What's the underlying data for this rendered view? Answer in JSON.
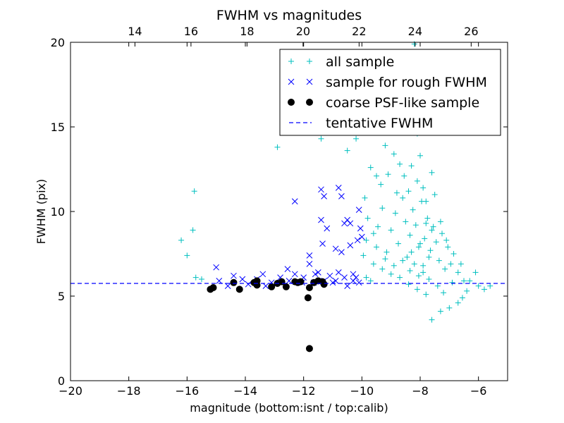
{
  "chart_data": {
    "type": "scatter",
    "title": "FWHM vs magnitudes",
    "xlabel": "magnitude (bottom:isnt / top:calib)",
    "ylabel": "FWHM (pix)",
    "xlim": [
      -20,
      -5
    ],
    "ylim": [
      0,
      20
    ],
    "top_xlim": [
      11.7,
      27.3
    ],
    "x_ticks": [
      -20,
      -18,
      -16,
      -14,
      -12,
      -10,
      -8,
      -6
    ],
    "x_tick_labels": [
      "−20",
      "−18",
      "−16",
      "−14",
      "−12",
      "−10",
      "−8",
      "−6"
    ],
    "y_ticks": [
      0,
      5,
      10,
      15,
      20
    ],
    "y_tick_labels": [
      "0",
      "5",
      "10",
      "15",
      "20"
    ],
    "top_x_ticks": [
      14,
      16,
      18,
      20,
      22,
      24,
      26
    ],
    "top_x_tick_labels": [
      "14",
      "16",
      "18",
      "20",
      "22",
      "24",
      "26"
    ],
    "grid": false,
    "legend_position": "top-right",
    "tentative_fwhm": 5.75,
    "series": [
      {
        "name": "all sample",
        "marker": "plus",
        "color": "#00bfbf",
        "points": [
          [
            -16.2,
            8.3
          ],
          [
            -16.0,
            7.4
          ],
          [
            -15.8,
            8.9
          ],
          [
            -15.75,
            11.2
          ],
          [
            -15.7,
            6.1
          ],
          [
            -15.5,
            6.0
          ],
          [
            -12.9,
            13.8
          ],
          [
            -11.4,
            14.3
          ],
          [
            -10.8,
            14.8
          ],
          [
            -10.5,
            13.6
          ],
          [
            -10.2,
            14.3
          ],
          [
            -9.7,
            12.6
          ],
          [
            -9.5,
            12.1
          ],
          [
            -9.2,
            13.9
          ],
          [
            -9.1,
            12.2
          ],
          [
            -8.9,
            13.4
          ],
          [
            -8.7,
            12.8
          ],
          [
            -8.55,
            12.1
          ],
          [
            -8.4,
            11.2
          ],
          [
            -8.3,
            12.7
          ],
          [
            -8.1,
            11.8
          ],
          [
            -8.0,
            13.3
          ],
          [
            -7.9,
            11.4
          ],
          [
            -7.8,
            10.6
          ],
          [
            -8.2,
            19.9
          ],
          [
            -8.6,
            14.9
          ],
          [
            -7.6,
            12.3
          ],
          [
            -7.5,
            11.0
          ],
          [
            -9.9,
            10.8
          ],
          [
            -9.8,
            9.6
          ],
          [
            -9.6,
            8.7
          ],
          [
            -9.45,
            9.1
          ],
          [
            -9.3,
            10.2
          ],
          [
            -9.15,
            7.6
          ],
          [
            -9.0,
            8.9
          ],
          [
            -8.85,
            9.9
          ],
          [
            -8.75,
            8.1
          ],
          [
            -8.6,
            10.8
          ],
          [
            -8.5,
            9.4
          ],
          [
            -8.45,
            7.3
          ],
          [
            -8.35,
            8.6
          ],
          [
            -8.25,
            10.1
          ],
          [
            -8.15,
            9.2
          ],
          [
            -8.05,
            7.9
          ],
          [
            -7.95,
            10.6
          ],
          [
            -7.85,
            8.4
          ],
          [
            -7.75,
            9.6
          ],
          [
            -7.65,
            7.7
          ],
          [
            -7.55,
            9.1
          ],
          [
            -7.45,
            8.2
          ],
          [
            -7.35,
            7.1
          ],
          [
            -7.25,
            8.7
          ],
          [
            -7.15,
            6.6
          ],
          [
            -7.05,
            7.9
          ],
          [
            -6.95,
            6.9
          ],
          [
            -6.85,
            7.5
          ],
          [
            -6.7,
            6.4
          ],
          [
            -6.6,
            6.9
          ],
          [
            -6.5,
            5.9
          ],
          [
            -6.4,
            5.3
          ],
          [
            -6.1,
            6.4
          ],
          [
            -6.0,
            5.6
          ],
          [
            -6.7,
            4.6
          ],
          [
            -7.0,
            4.3
          ],
          [
            -7.3,
            4.1
          ],
          [
            -7.6,
            3.6
          ],
          [
            -7.8,
            5.1
          ],
          [
            -8.1,
            5.4
          ],
          [
            -8.4,
            5.7
          ],
          [
            -8.7,
            6.1
          ],
          [
            -9.0,
            6.3
          ],
          [
            -9.3,
            6.6
          ],
          [
            -9.6,
            6.9
          ],
          [
            -9.85,
            6.1
          ],
          [
            -9.95,
            7.4
          ],
          [
            -9.7,
            5.9
          ],
          [
            -8.9,
            6.8
          ],
          [
            -8.2,
            6.9
          ],
          [
            -7.9,
            6.4
          ],
          [
            -7.7,
            6.0
          ],
          [
            -7.4,
            5.6
          ],
          [
            -7.2,
            5.2
          ],
          [
            -6.9,
            5.8
          ],
          [
            -8.3,
            7.6
          ],
          [
            -8.0,
            8.1
          ],
          [
            -7.6,
            8.9
          ],
          [
            -7.3,
            9.4
          ],
          [
            -7.1,
            8.3
          ],
          [
            -8.6,
            7.1
          ],
          [
            -9.2,
            7.2
          ],
          [
            -9.5,
            7.9
          ],
          [
            -9.85,
            8.3
          ],
          [
            -5.6,
            5.6
          ],
          [
            -5.8,
            5.4
          ],
          [
            -6.3,
            5.9
          ],
          [
            -6.55,
            4.9
          ],
          [
            -8.8,
            11.1
          ],
          [
            -9.35,
            11.6
          ],
          [
            -8.1,
            14.6
          ],
          [
            -8.5,
            15.4
          ],
          [
            -8.9,
            15.1
          ],
          [
            -7.8,
            9.3
          ],
          [
            -7.7,
            7.3
          ],
          [
            -7.9,
            6.8
          ],
          [
            -8.05,
            6.2
          ],
          [
            -8.35,
            6.5
          ]
        ]
      },
      {
        "name": "sample for rough FWHM",
        "marker": "x",
        "color": "#0000ff",
        "points": [
          [
            -15.0,
            6.7
          ],
          [
            -14.9,
            5.9
          ],
          [
            -14.6,
            5.6
          ],
          [
            -14.4,
            6.2
          ],
          [
            -14.1,
            6.0
          ],
          [
            -13.9,
            5.7
          ],
          [
            -13.6,
            6.0
          ],
          [
            -13.4,
            6.3
          ],
          [
            -13.1,
            5.8
          ],
          [
            -12.8,
            6.1
          ],
          [
            -12.55,
            6.6
          ],
          [
            -12.3,
            6.3
          ],
          [
            -12.3,
            10.6
          ],
          [
            -12.0,
            6.1
          ],
          [
            -11.8,
            6.9
          ],
          [
            -11.8,
            7.4
          ],
          [
            -11.65,
            5.8
          ],
          [
            -11.5,
            6.4
          ],
          [
            -11.4,
            11.3
          ],
          [
            -11.3,
            10.9
          ],
          [
            -11.4,
            9.5
          ],
          [
            -11.35,
            8.1
          ],
          [
            -11.2,
            9.0
          ],
          [
            -11.1,
            6.2
          ],
          [
            -11.0,
            5.8
          ],
          [
            -10.8,
            11.4
          ],
          [
            -10.7,
            10.9
          ],
          [
            -10.6,
            9.3
          ],
          [
            -10.5,
            9.5
          ],
          [
            -10.4,
            8.0
          ],
          [
            -10.3,
            6.3
          ],
          [
            -10.15,
            8.3
          ],
          [
            -10.1,
            10.1
          ],
          [
            -10.05,
            9.0
          ],
          [
            -10.0,
            8.5
          ],
          [
            -10.9,
            5.9
          ],
          [
            -10.8,
            6.4
          ],
          [
            -10.6,
            6.1
          ],
          [
            -10.5,
            5.6
          ],
          [
            -10.3,
            5.9
          ],
          [
            -10.2,
            6.1
          ],
          [
            -10.1,
            5.8
          ],
          [
            -11.3,
            5.9
          ],
          [
            -11.6,
            6.3
          ],
          [
            -10.7,
            7.6
          ],
          [
            -10.9,
            7.8
          ],
          [
            -10.4,
            9.3
          ],
          [
            -12.05,
            5.8
          ],
          [
            -13.3,
            5.6
          ],
          [
            -12.5,
            5.9
          ]
        ]
      },
      {
        "name": "coarse PSF-like sample",
        "marker": "circle",
        "color": "#000000",
        "points": [
          [
            -15.2,
            5.4
          ],
          [
            -15.1,
            5.5
          ],
          [
            -14.4,
            5.8
          ],
          [
            -14.2,
            5.4
          ],
          [
            -13.7,
            5.8
          ],
          [
            -13.6,
            5.9
          ],
          [
            -13.6,
            5.65
          ],
          [
            -13.1,
            5.55
          ],
          [
            -12.9,
            5.75
          ],
          [
            -12.75,
            5.85
          ],
          [
            -12.6,
            5.55
          ],
          [
            -12.3,
            5.85
          ],
          [
            -12.2,
            5.8
          ],
          [
            -12.1,
            5.85
          ],
          [
            -11.85,
            4.9
          ],
          [
            -11.8,
            5.5
          ],
          [
            -11.65,
            5.8
          ],
          [
            -11.5,
            5.9
          ],
          [
            -11.35,
            5.85
          ],
          [
            -11.3,
            5.7
          ],
          [
            -11.8,
            1.9
          ]
        ]
      },
      {
        "name": "tentative FWHM",
        "marker": "dashed-line",
        "color": "#0000ff"
      }
    ]
  }
}
